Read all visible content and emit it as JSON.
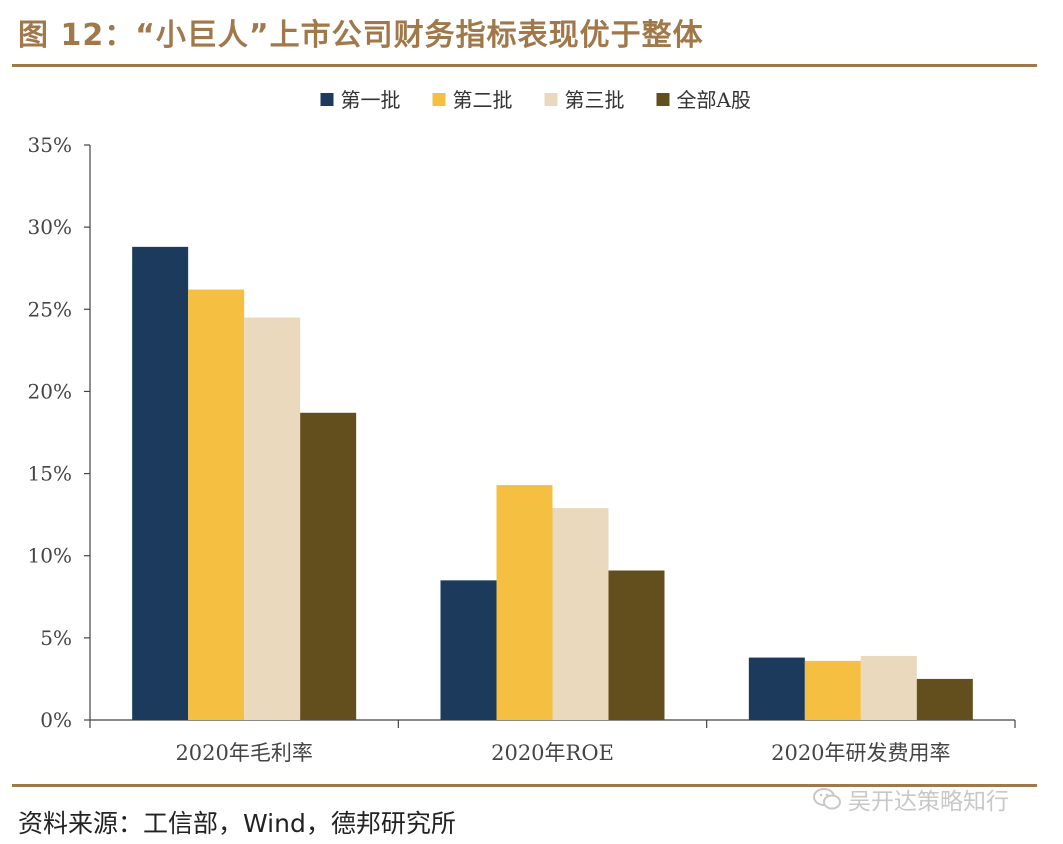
{
  "header": {
    "title": "图 12：“小巨人”上市公司财务指标表现优于整体"
  },
  "footer": {
    "source": "资料来源：工信部，Wind，德邦研究所",
    "watermark": "吴开达策略知行"
  },
  "colors": {
    "accent": "#a0784a",
    "series": [
      "#1b3a5c",
      "#f5bf42",
      "#ead9bd",
      "#634f1d"
    ]
  },
  "chart_data": {
    "type": "bar",
    "categories": [
      "2020年毛利率",
      "2020年ROE",
      "2020年研发费用率"
    ],
    "series": [
      {
        "name": "第一批",
        "values": [
          28.8,
          8.5,
          3.8
        ]
      },
      {
        "name": "第二批",
        "values": [
          26.2,
          14.3,
          3.6
        ]
      },
      {
        "name": "第三批",
        "values": [
          24.5,
          12.9,
          3.9
        ]
      },
      {
        "name": "全部A股",
        "values": [
          18.7,
          9.1,
          2.5
        ]
      }
    ],
    "ylim": [
      0,
      35
    ],
    "yticks": [
      0,
      5,
      10,
      15,
      20,
      25,
      30,
      35
    ],
    "ytick_labels": [
      "0%",
      "5%",
      "10%",
      "15%",
      "20%",
      "25%",
      "30%",
      "35%"
    ],
    "legend_position": "top-center",
    "grid": false
  }
}
